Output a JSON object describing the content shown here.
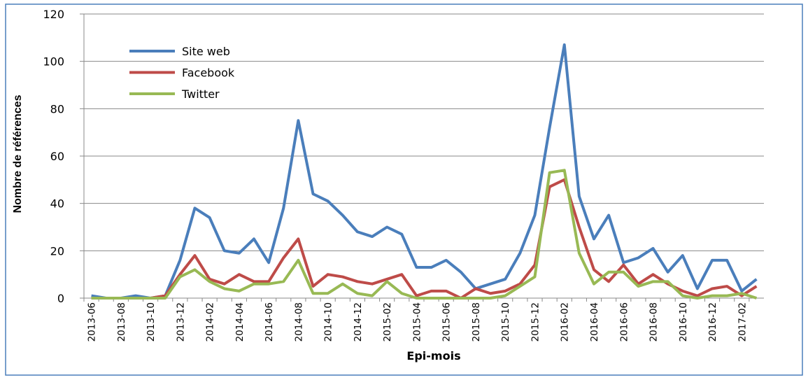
{
  "chart_data": {
    "type": "line",
    "x_label": "Epi-mois",
    "y_label": "Nombre de références",
    "categories": [
      "2013-06",
      null,
      "2013-08",
      null,
      "2013-10",
      null,
      "2013-12",
      null,
      "2014-02",
      null,
      "2014-04",
      null,
      "2014-06",
      null,
      "2014-08",
      null,
      "2014-10",
      null,
      "2014-12",
      null,
      "2015-02",
      null,
      "2015-04",
      null,
      "2015-06",
      null,
      "2015-08",
      null,
      "2015-10",
      null,
      "2015-12",
      null,
      "2016-02",
      null,
      "2016-04",
      null,
      "2016-06",
      null,
      "2016-08",
      null,
      "2016-10",
      null,
      "2016-12",
      null,
      "2017-02",
      null
    ],
    "series": [
      {
        "name": "Site web",
        "color": "#4a7ebb",
        "values": [
          1,
          0,
          0,
          1,
          0,
          1,
          16,
          38,
          34,
          20,
          19,
          25,
          15,
          38,
          75,
          44,
          41,
          35,
          28,
          26,
          30,
          27,
          13,
          13,
          16,
          11,
          4,
          6,
          8,
          19,
          35,
          72,
          107,
          43,
          25,
          35,
          15,
          17,
          21,
          11,
          18,
          4,
          16,
          16,
          3,
          8
        ]
      },
      {
        "name": "Facebook",
        "color": "#be4b48",
        "values": [
          0,
          0,
          0,
          0,
          0,
          1,
          10,
          18,
          8,
          6,
          10,
          7,
          7,
          17,
          25,
          5,
          10,
          9,
          7,
          6,
          8,
          10,
          1,
          3,
          3,
          0,
          4,
          2,
          3,
          6,
          14,
          47,
          50,
          30,
          12,
          7,
          14,
          6,
          10,
          6,
          3,
          1,
          4,
          5,
          1,
          5
        ]
      },
      {
        "name": "Twitter",
        "color": "#98b954",
        "values": [
          0,
          0,
          0,
          0,
          0,
          0,
          9,
          12,
          7,
          4,
          3,
          6,
          6,
          7,
          16,
          2,
          2,
          6,
          2,
          1,
          7,
          2,
          0,
          0,
          0,
          0,
          0,
          0,
          1,
          5,
          9,
          53,
          54,
          19,
          6,
          11,
          11,
          5,
          7,
          7,
          1,
          0,
          1,
          1,
          2,
          0
        ]
      }
    ],
    "ylim": [
      0,
      120
    ],
    "yticks": [
      0,
      20,
      40,
      60,
      80,
      100,
      120
    ],
    "grid": true
  }
}
